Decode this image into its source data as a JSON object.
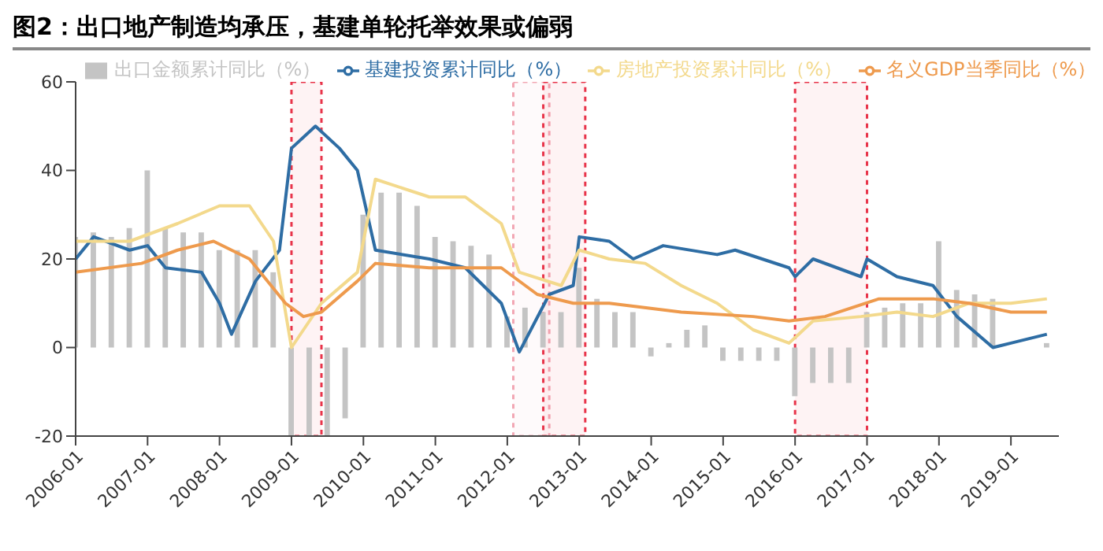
{
  "chart_data": {
    "type": "bar",
    "title": "图2：出口地产制造均承压，基建单轮托举效果或偏弱",
    "legend": "top",
    "grid": false,
    "xlim": [
      "2006-01",
      "2019-09"
    ],
    "xticks": [
      "2006-01",
      "2007-01",
      "2008-01",
      "2009-01",
      "2010-01",
      "2011-01",
      "2012-01",
      "2013-01",
      "2014-01",
      "2015-01",
      "2016-01",
      "2017-01",
      "2018-01",
      "2019-01"
    ],
    "ylim": [
      -20,
      60
    ],
    "yticks": [
      -20,
      0,
      20,
      40,
      60
    ],
    "x": [
      "2006-01",
      "2006-04",
      "2006-07",
      "2006-10",
      "2007-01",
      "2007-04",
      "2007-07",
      "2007-10",
      "2008-01",
      "2008-04",
      "2008-07",
      "2008-10",
      "2009-01",
      "2009-04",
      "2009-07",
      "2009-10",
      "2010-01",
      "2010-04",
      "2010-07",
      "2010-10",
      "2011-01",
      "2011-04",
      "2011-07",
      "2011-10",
      "2012-01",
      "2012-04",
      "2012-07",
      "2012-10",
      "2013-01",
      "2013-04",
      "2013-07",
      "2013-10",
      "2014-01",
      "2014-04",
      "2014-07",
      "2014-10",
      "2015-01",
      "2015-04",
      "2015-07",
      "2015-10",
      "2016-01",
      "2016-04",
      "2016-07",
      "2016-10",
      "2017-01",
      "2017-04",
      "2017-07",
      "2017-10",
      "2018-01",
      "2018-04",
      "2018-07",
      "2018-10",
      "2019-01",
      "2019-04",
      "2019-07"
    ],
    "series": [
      {
        "name": "出口金额累计同比（%）",
        "color": "#c4c4c4",
        "values": [
          25,
          26,
          25,
          27,
          40,
          27,
          26,
          26,
          22,
          22,
          22,
          17,
          -20,
          -20,
          -20,
          -16,
          30,
          35,
          35,
          32,
          25,
          24,
          23,
          21,
          7,
          9,
          8,
          8,
          18,
          11,
          8,
          8,
          -2,
          1,
          4,
          5,
          -3,
          -3,
          -3,
          -3,
          -11,
          -8,
          -8,
          -8,
          8,
          9,
          10,
          10,
          24,
          13,
          12,
          11,
          0,
          0,
          1
        ]
      },
      {
        "name": "基建投资累计同比（%）",
        "type": "line",
        "color": "#2e6da4",
        "x": [
          "2006-01",
          "2006-04",
          "2006-10",
          "2007-01",
          "2007-04",
          "2007-10",
          "2008-01",
          "2008-03",
          "2008-07",
          "2008-11",
          "2009-01",
          "2009-05",
          "2009-09",
          "2009-12",
          "2010-03",
          "2010-12",
          "2011-06",
          "2011-12",
          "2012-03",
          "2012-08",
          "2012-12",
          "2013-01",
          "2013-06",
          "2013-10",
          "2014-03",
          "2014-12",
          "2015-03",
          "2015-12",
          "2016-01",
          "2016-04",
          "2016-12",
          "2017-01",
          "2017-06",
          "2017-12",
          "2018-04",
          "2018-10",
          "2019-01",
          "2019-07"
        ],
        "values": [
          20,
          25,
          22,
          23,
          18,
          17,
          10,
          3,
          15,
          22,
          45,
          50,
          45,
          40,
          22,
          20,
          18,
          10,
          -1,
          12,
          14,
          25,
          24,
          20,
          23,
          21,
          22,
          18,
          16,
          20,
          16,
          20,
          16,
          14,
          7,
          0,
          1,
          3
        ]
      },
      {
        "name": "房地产投资累计同比（%）",
        "type": "line",
        "color": "#f3d98c",
        "x": [
          "2006-01",
          "2006-10",
          "2007-06",
          "2008-01",
          "2008-06",
          "2008-10",
          "2009-01",
          "2009-06",
          "2009-12",
          "2010-03",
          "2010-12",
          "2011-06",
          "2011-12",
          "2012-03",
          "2012-10",
          "2013-01",
          "2013-06",
          "2013-12",
          "2014-06",
          "2014-12",
          "2015-06",
          "2015-12",
          "2016-04",
          "2016-12",
          "2017-06",
          "2017-12",
          "2018-06",
          "2019-01",
          "2019-07"
        ],
        "values": [
          24,
          24,
          28,
          32,
          32,
          24,
          0,
          10,
          17,
          38,
          34,
          34,
          28,
          17,
          14,
          22,
          20,
          19,
          14,
          10,
          4,
          1,
          6,
          7,
          8,
          7,
          10,
          10,
          11
        ]
      },
      {
        "name": "名义GDP当季同比（%）",
        "type": "line",
        "color": "#ee9a4d",
        "x": [
          "2006-01",
          "2006-12",
          "2007-06",
          "2007-12",
          "2008-06",
          "2008-12",
          "2009-03",
          "2009-06",
          "2009-12",
          "2010-03",
          "2010-12",
          "2011-06",
          "2011-12",
          "2012-06",
          "2012-12",
          "2013-06",
          "2014-06",
          "2015-06",
          "2015-12",
          "2016-06",
          "2017-03",
          "2017-12",
          "2018-06",
          "2019-01",
          "2019-07"
        ],
        "values": [
          17,
          19,
          22,
          24,
          20,
          10,
          7,
          8,
          15,
          19,
          18,
          18,
          18,
          12,
          10,
          10,
          8,
          7,
          6,
          7,
          11,
          11,
          10,
          8,
          8
        ]
      }
    ],
    "bands": [
      {
        "axis": "x",
        "from": "2009-01",
        "to": "2009-06",
        "color": "#e8344a"
      },
      {
        "axis": "x",
        "from": "2012-02",
        "to": "2012-08",
        "color": "#f2a7b4"
      },
      {
        "axis": "x",
        "from": "2012-07",
        "to": "2013-02",
        "color": "#e8344a"
      },
      {
        "axis": "x",
        "from": "2016-01",
        "to": "2017-01",
        "color": "#e8344a"
      }
    ]
  }
}
